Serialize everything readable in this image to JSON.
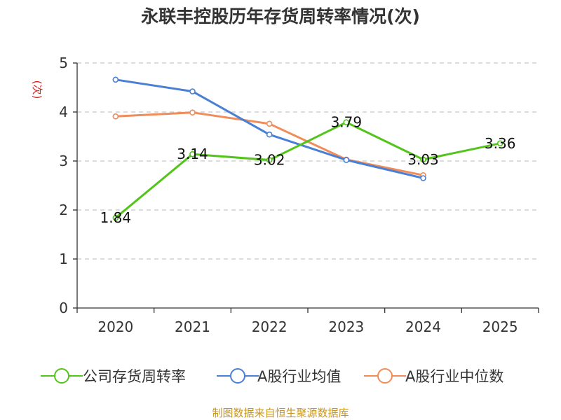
{
  "chart_data": {
    "type": "line",
    "title": "永联丰控股历年存货周转率情况(次)",
    "ylabel": "(次)",
    "xlabel": "",
    "categories": [
      "2020",
      "2021",
      "2022",
      "2023",
      "2024",
      "2025"
    ],
    "ylim": [
      0,
      5
    ],
    "yticks": [
      0,
      1,
      2,
      3,
      4,
      5
    ],
    "grid": true,
    "legend_position": "bottom",
    "series": [
      {
        "name": "公司存货周转率",
        "color": "#52c41a",
        "values": [
          1.84,
          3.14,
          3.02,
          3.79,
          3.03,
          3.36
        ],
        "labels": [
          "1.84",
          "3.14",
          "3.02",
          "3.79",
          "3.03",
          "3.36"
        ]
      },
      {
        "name": "A股行业均值",
        "color": "#4a7fd6",
        "values": [
          4.66,
          4.42,
          3.54,
          3.02,
          2.65,
          null
        ]
      },
      {
        "name": "A股行业中位数",
        "color": "#f08c5a",
        "values": [
          3.91,
          3.99,
          3.76,
          3.03,
          2.71,
          null
        ]
      }
    ],
    "source": "制图数据来自恒生聚源数据库"
  }
}
